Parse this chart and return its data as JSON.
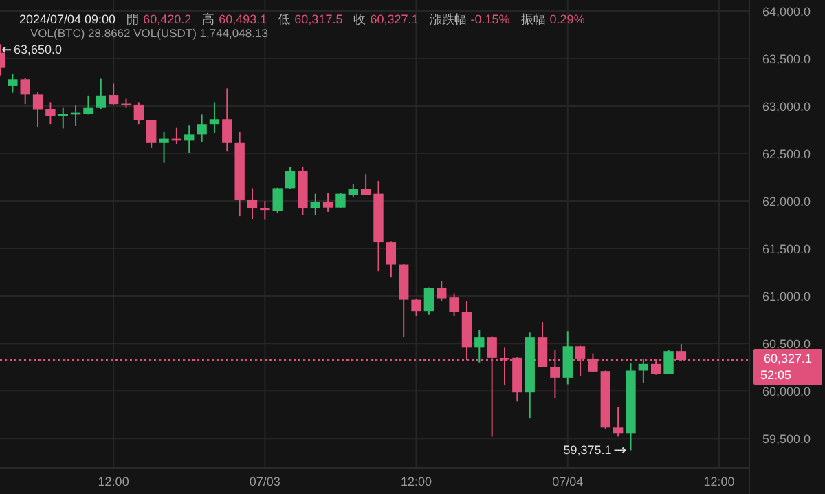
{
  "chart_data": {
    "type": "candlestick",
    "title": "2024/07/04 09:00",
    "subtitle": "VOL(BTC) 28.8662  VOL(USDT) 1,744,048.13",
    "annotations": [
      "開",
      "60,420.2",
      "高",
      "60,493.1",
      "低",
      "60,317.5",
      "收",
      "60,327.1",
      "漲跌幅",
      "-0.15%",
      "振幅",
      "0.29%",
      "52:05",
      {
        "text": "63,650.0",
        "x": "2024-07-02T03:00",
        "y": 63650
      },
      {
        "text": "59,375.1",
        "x": "2024-07-04T05:00",
        "y": 59375.1
      }
    ],
    "x": [
      "2024-07-02T03:00",
      "2024-07-02T04:00",
      "2024-07-02T05:00",
      "2024-07-02T06:00",
      "2024-07-02T07:00",
      "2024-07-02T08:00",
      "2024-07-02T09:00",
      "2024-07-02T10:00",
      "2024-07-02T11:00",
      "2024-07-02T12:00",
      "2024-07-02T13:00",
      "2024-07-02T14:00",
      "2024-07-02T15:00",
      "2024-07-02T16:00",
      "2024-07-02T17:00",
      "2024-07-02T18:00",
      "2024-07-02T19:00",
      "2024-07-02T20:00",
      "2024-07-02T21:00",
      "2024-07-02T22:00",
      "2024-07-02T23:00",
      "2024-07-03T00:00",
      "2024-07-03T01:00",
      "2024-07-03T02:00",
      "2024-07-03T03:00",
      "2024-07-03T04:00",
      "2024-07-03T05:00",
      "2024-07-03T06:00",
      "2024-07-03T07:00",
      "2024-07-03T08:00",
      "2024-07-03T09:00",
      "2024-07-03T10:00",
      "2024-07-03T11:00",
      "2024-07-03T12:00",
      "2024-07-03T13:00",
      "2024-07-03T14:00",
      "2024-07-03T15:00",
      "2024-07-03T16:00",
      "2024-07-03T17:00",
      "2024-07-03T18:00",
      "2024-07-03T19:00",
      "2024-07-03T20:00",
      "2024-07-03T21:00",
      "2024-07-03T22:00",
      "2024-07-03T23:00",
      "2024-07-04T00:00",
      "2024-07-04T01:00",
      "2024-07-04T02:00",
      "2024-07-04T03:00",
      "2024-07-04T04:00",
      "2024-07-04T05:00",
      "2024-07-04T06:00",
      "2024-07-04T07:00",
      "2024-07-04T08:00",
      "2024-07-04T09:00"
    ],
    "ohlc": [
      [
        63560,
        63650,
        63320,
        63400
      ],
      [
        63210,
        63340,
        63140,
        63280
      ],
      [
        63280,
        63290,
        63020,
        63120
      ],
      [
        63120,
        63150,
        62780,
        62960
      ],
      [
        62970,
        63040,
        62810,
        62895
      ],
      [
        62895,
        62980,
        62765,
        62920
      ],
      [
        62910,
        63005,
        62790,
        62930
      ],
      [
        62920,
        63110,
        62910,
        62980
      ],
      [
        62980,
        63285,
        62965,
        63110
      ],
      [
        63115,
        63235,
        63015,
        63020
      ],
      [
        63025,
        63075,
        62980,
        63010
      ],
      [
        63015,
        63040,
        62810,
        62850
      ],
      [
        62850,
        62855,
        62560,
        62610
      ],
      [
        62610,
        62725,
        62400,
        62655
      ],
      [
        62655,
        62770,
        62595,
        62635
      ],
      [
        62635,
        62795,
        62500,
        62700
      ],
      [
        62700,
        62910,
        62620,
        62810
      ],
      [
        62810,
        63040,
        62715,
        62860
      ],
      [
        62860,
        63185,
        62520,
        62610
      ],
      [
        62610,
        62725,
        61840,
        62015
      ],
      [
        62015,
        62135,
        61810,
        61920
      ],
      [
        61925,
        62000,
        61800,
        61905
      ],
      [
        61895,
        62140,
        61870,
        62135
      ],
      [
        62135,
        62355,
        62130,
        62315
      ],
      [
        62315,
        62355,
        61855,
        61920
      ],
      [
        61920,
        62075,
        61855,
        61990
      ],
      [
        61990,
        62085,
        61885,
        61930
      ],
      [
        61930,
        62080,
        61920,
        62075
      ],
      [
        62065,
        62175,
        62040,
        62125
      ],
      [
        62125,
        62280,
        62060,
        62065
      ],
      [
        62075,
        62210,
        61260,
        61565
      ],
      [
        61565,
        61570,
        61195,
        61330
      ],
      [
        61330,
        61335,
        60565,
        60960
      ],
      [
        60960,
        60965,
        60785,
        60840
      ],
      [
        60840,
        61090,
        60800,
        61085
      ],
      [
        61085,
        61155,
        60950,
        60975
      ],
      [
        60985,
        61025,
        60785,
        60830
      ],
      [
        60830,
        60950,
        60325,
        60455
      ],
      [
        60455,
        60640,
        60300,
        60565
      ],
      [
        60565,
        60570,
        59520,
        60350
      ],
      [
        60345,
        60455,
        60060,
        60335
      ],
      [
        60350,
        60355,
        59890,
        59985
      ],
      [
        59985,
        60615,
        59710,
        60565
      ],
      [
        60565,
        60725,
        60250,
        60250
      ],
      [
        60250,
        60435,
        59925,
        60140
      ],
      [
        60140,
        60630,
        60070,
        60470
      ],
      [
        60470,
        60475,
        60155,
        60335
      ],
      [
        60335,
        60395,
        60200,
        60205
      ],
      [
        60210,
        60215,
        59600,
        59615
      ],
      [
        59615,
        59830,
        59520,
        59550
      ],
      [
        59550,
        60290,
        59375.1,
        60215
      ],
      [
        60215,
        60335,
        60085,
        60285
      ],
      [
        60285,
        60320,
        60170,
        60180
      ],
      [
        60180,
        60435,
        60175,
        60420
      ],
      [
        60420.2,
        60493.1,
        60317.5,
        60327.1
      ]
    ],
    "xlim": [
      "2024-07-02T03:00",
      "2024-07-04T14:24"
    ],
    "xticks": [
      {
        "value": "2024-07-02T12:00",
        "label": "12:00"
      },
      {
        "value": "2024-07-03T00:00",
        "label": "07/03"
      },
      {
        "value": "2024-07-03T12:00",
        "label": "12:00"
      },
      {
        "value": "2024-07-04T00:00",
        "label": "07/04"
      },
      {
        "value": "2024-07-04T12:00",
        "label": "12:00"
      }
    ],
    "ylim": [
      59190,
      64115
    ],
    "yticks": [
      {
        "value": 59500,
        "label": "59,500.0"
      },
      {
        "value": 60000,
        "label": "60,000.0"
      },
      {
        "value": 60500,
        "label": "60,500.0"
      },
      {
        "value": 61000,
        "label": "61,000.0"
      },
      {
        "value": 61500,
        "label": "61,500.0"
      },
      {
        "value": 62000,
        "label": "62,000.0"
      },
      {
        "value": 62500,
        "label": "62,500.0"
      },
      {
        "value": 63000,
        "label": "63,000.0"
      },
      {
        "value": 63500,
        "label": "63,500.0"
      },
      {
        "value": 64000,
        "label": "64,000.0"
      }
    ],
    "ref_lines": [
      {
        "axis": "y",
        "value": 60327.1,
        "label": "60,327.1",
        "color": "#e0507a",
        "line_style": "dotted"
      }
    ],
    "grid": true
  }
}
